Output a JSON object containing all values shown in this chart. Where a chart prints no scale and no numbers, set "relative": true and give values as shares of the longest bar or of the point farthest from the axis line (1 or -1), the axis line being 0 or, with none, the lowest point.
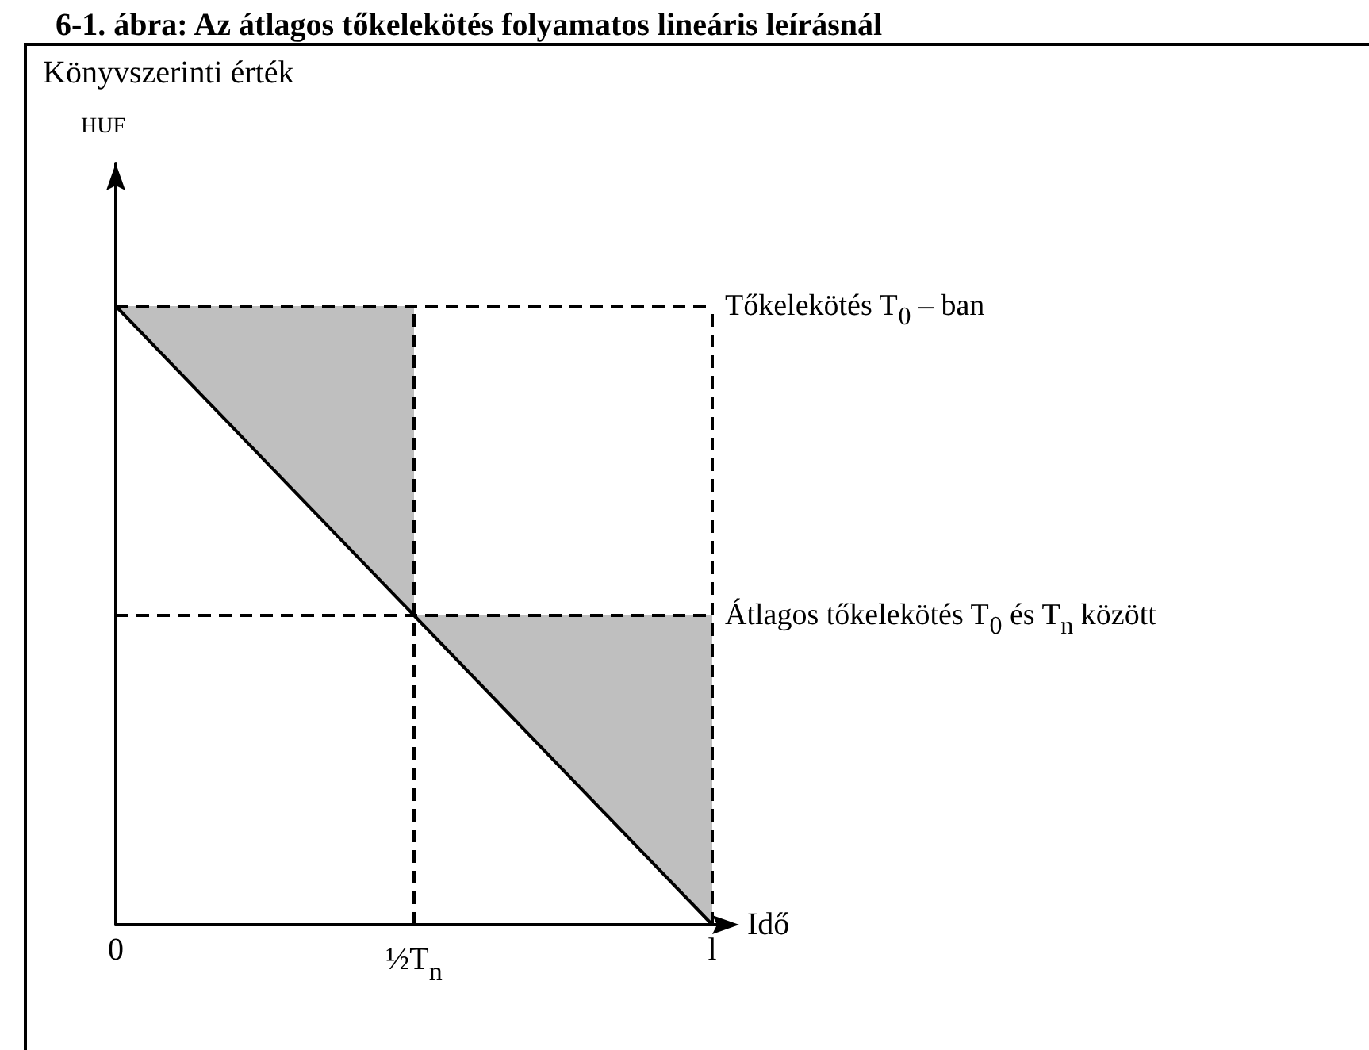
{
  "chart_data": {
    "type": "line",
    "title": "6-1. ábra: Az átlagos tőkelekötés folyamatos lineáris leírásnál",
    "xlabel": "Idő",
    "annotations": [
      "Könyvszerinti érték",
      "HUF"
    ],
    "relative": true,
    "marker": "none",
    "categories": [
      "0",
      "½T$_{n}$",
      "l"
    ],
    "series": [
      {
        "color": "#000000",
        "line_style": "solid",
        "values": [
          1,
          0.5,
          0
        ]
      },
      {
        "name": "Tőkelekötés T$_{0}$ – ban",
        "color": "#000000",
        "line_style": "dashed",
        "values": [
          1,
          1,
          1
        ],
        "lower": [
          1,
          0.5,
          null
        ],
        "upper": [
          1,
          1,
          null
        ]
      },
      {
        "name": "Átlagos tőkelekötés T$_{0}$ és T$_{n}$ között",
        "color": "#000000",
        "line_style": "dashed",
        "values": [
          0.5,
          0.5,
          0.5
        ],
        "lower": [
          null,
          0.5,
          0
        ],
        "upper": [
          null,
          0.5,
          0.5
        ]
      }
    ],
    "ref_lines": [
      {
        "axis": "x",
        "value": "½T$_{n}$",
        "color": "#000000",
        "line_style": "dashed"
      },
      {
        "axis": "x",
        "value": "l",
        "color": "#000000",
        "line_style": "dashed"
      }
    ]
  }
}
